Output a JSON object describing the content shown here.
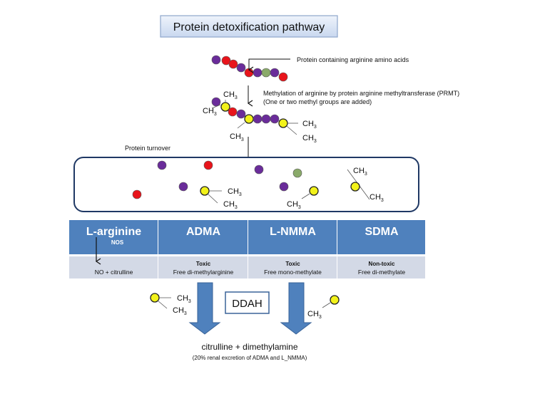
{
  "title": "Protein detoxification pathway",
  "labels": {
    "protein": "Protein containing arginine amino acids",
    "methylation_line1": "Methylation of arginine by protein arginine methyltransferase (PRMT)",
    "methylation_line2": "(One or two methyl groups are added)",
    "turnover": "Protein turnover",
    "methyl_group": "CH",
    "methyl_sub": "3",
    "ddah": "DDAH",
    "product": "citrulline + dimethylamine",
    "product_note": "(20% renal excretion of ADMA and L_NMMA)"
  },
  "table": {
    "columns": [
      {
        "header": "L-arginine",
        "subheader": "NOS",
        "line1": "",
        "line2": "NO + citrulline"
      },
      {
        "header": "ADMA",
        "subheader": "",
        "line1": "Toxic",
        "line2": "Free di-methylarginine"
      },
      {
        "header": "L-NMMA",
        "subheader": "",
        "line1": "Toxic",
        "line2": "Free mono-methylate"
      },
      {
        "header": "SDMA",
        "subheader": "",
        "line1": "Non-toxic",
        "line2": "Free di-methylate"
      }
    ]
  },
  "colors": {
    "header_blue": "#4f81bd",
    "row_gray": "#d3d9e6",
    "purple": "#6a2c9a",
    "red": "#e8141b",
    "green": "#8aaa6a",
    "yellow": "#f2f21a",
    "box_border": "#1f3864"
  }
}
